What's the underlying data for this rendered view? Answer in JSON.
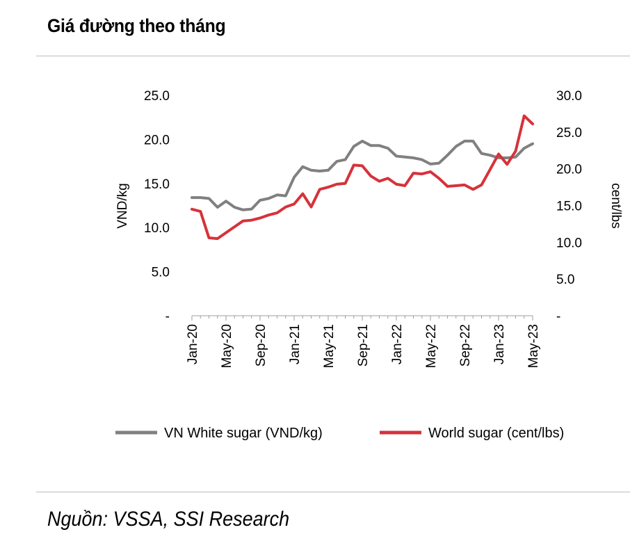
{
  "header": {
    "title": "Giá đường theo tháng"
  },
  "footer": {
    "source": "Nguồn: VSSA, SSI Research"
  },
  "chart_data": {
    "type": "line",
    "title": "Giá đường theo tháng",
    "ylabel": "VND/kg",
    "y2label": "cent/lbs",
    "ylim": [
      0,
      25
    ],
    "y2lim": [
      0,
      30
    ],
    "yticks": [
      "-",
      "5.0",
      "10.0",
      "15.0",
      "20.0",
      "25.0"
    ],
    "y2ticks": [
      "-",
      "5.0",
      "10.0",
      "15.0",
      "20.0",
      "25.0",
      "30.0"
    ],
    "xtick_labels": [
      {
        "index": 0,
        "label": "Jan-20"
      },
      {
        "index": 4,
        "label": "May-20"
      },
      {
        "index": 8,
        "label": "Sep-20"
      },
      {
        "index": 12,
        "label": "Jan-21"
      },
      {
        "index": 16,
        "label": "May-21"
      },
      {
        "index": 20,
        "label": "Sep-21"
      },
      {
        "index": 24,
        "label": "Jan-22"
      },
      {
        "index": 28,
        "label": "May-22"
      },
      {
        "index": 32,
        "label": "Sep-22"
      },
      {
        "index": 36,
        "label": "Jan-23"
      },
      {
        "index": 40,
        "label": "May-23"
      }
    ],
    "series": [
      {
        "name": "VN White sugar (VND/kg)",
        "axis": "left",
        "color": "#808080",
        "values": [
          13.4,
          13.4,
          13.3,
          12.3,
          13.0,
          12.3,
          12.0,
          12.1,
          13.1,
          13.3,
          13.7,
          13.6,
          15.7,
          16.9,
          16.5,
          16.4,
          16.5,
          17.5,
          17.7,
          19.2,
          19.8,
          19.3,
          19.3,
          19.0,
          18.1,
          18.0,
          17.9,
          17.7,
          17.2,
          17.3,
          18.2,
          19.2,
          19.8,
          19.8,
          18.4,
          18.2,
          17.9,
          17.9,
          18.0,
          19.0,
          19.5
        ]
      },
      {
        "name": "World sugar (cent/lbs)",
        "axis": "right",
        "color": "#d6323a",
        "values": [
          14.5,
          14.2,
          10.6,
          10.5,
          11.3,
          12.1,
          12.9,
          13.0,
          13.3,
          13.7,
          14.0,
          14.8,
          15.2,
          16.6,
          14.8,
          17.2,
          17.5,
          17.9,
          18.0,
          20.5,
          20.4,
          19.0,
          18.3,
          18.7,
          17.9,
          17.7,
          19.4,
          19.3,
          19.6,
          18.7,
          17.6,
          17.7,
          17.8,
          17.2,
          17.8,
          19.9,
          22.0,
          20.6,
          22.4,
          27.2,
          26.1
        ]
      }
    ],
    "legend": "bottom"
  }
}
